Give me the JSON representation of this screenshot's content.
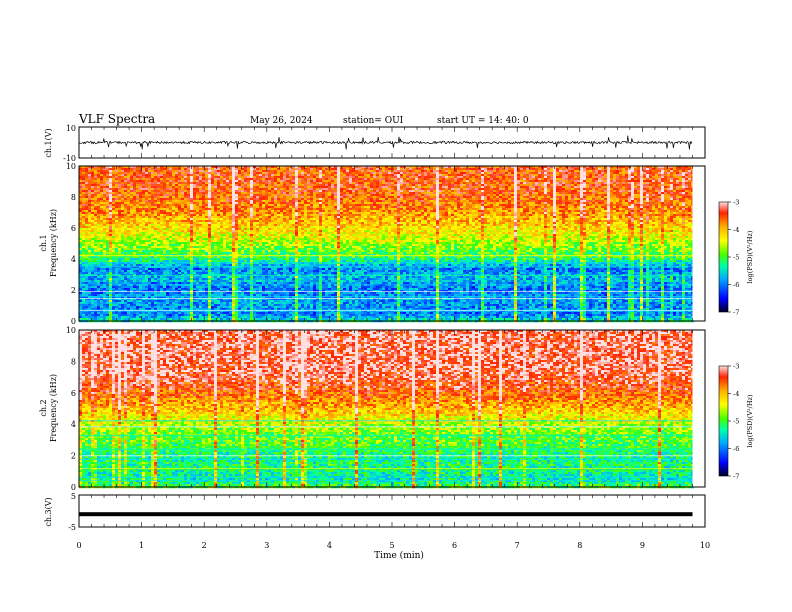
{
  "header": {
    "title": "VLF Spectra",
    "date": "May 26, 2024",
    "station": "station= OUI",
    "start": "start  UT =   14: 40: 0"
  },
  "panels": {
    "ch1_wave": {
      "ylabel": "ch.1(V)",
      "ymin_label": "-10",
      "ymax_label": "10"
    },
    "ch1_spec": {
      "ylabel1": "ch.1",
      "ylabel2": "Frequency (kHz)"
    },
    "ch2_spec": {
      "ylabel1": "ch.2",
      "ylabel2": "Frequency (kHz)"
    },
    "ch3_wave": {
      "ylabel": "ch.3(V)",
      "ymin_label": "-5",
      "ymax_label": "5"
    }
  },
  "colorbar": {
    "label": "log(PSD)(V²/Hz)",
    "ticks": [
      "-3",
      "-4",
      "-5",
      "-6",
      "-7"
    ]
  },
  "xaxis": {
    "label": "Time (min)"
  },
  "colors": {
    "scale": [
      "#00002a",
      "#0000ff",
      "#00aaff",
      "#00ffaa",
      "#44ff00",
      "#ffff00",
      "#ffaa00",
      "#ff2200",
      "#ffe0e0"
    ]
  },
  "chart_data": [
    {
      "type": "line",
      "name": "ch1-waveform",
      "ylabel": "ch.1(V)",
      "xlim": [
        0,
        10
      ],
      "ylim": [
        -10,
        10
      ],
      "x_data_end": 9.8,
      "baseline": 0,
      "description_values": {
        "typical_amplitude": 1.5,
        "spike_range": [
          -3,
          3
        ]
      }
    },
    {
      "type": "heatmap",
      "name": "ch1-spectrogram",
      "xlabel": "Time (min)",
      "ylabel": "Frequency (kHz)",
      "xlim": [
        0,
        10
      ],
      "x_data_end": 9.8,
      "ylim": [
        0,
        10
      ],
      "yticks": [
        0,
        2,
        4,
        6,
        8,
        10
      ],
      "zlim": [
        -7,
        -3
      ],
      "zlabel": "log(PSD)(V²/Hz)",
      "profile_freq_khz": [
        0,
        0.5,
        1,
        1.5,
        2,
        2.5,
        3,
        3.5,
        4,
        4.5,
        5,
        5.5,
        6,
        6.5,
        7,
        7.5,
        8,
        8.5,
        9,
        9.5,
        10
      ],
      "profile_logpsd": [
        -5.4,
        -6.1,
        -6.0,
        -5.9,
        -6.1,
        -6.0,
        -5.8,
        -6.1,
        -5.3,
        -5.0,
        -4.8,
        -4.5,
        -4.3,
        -4.1,
        -3.9,
        -3.8,
        -3.7,
        -3.6,
        -3.6,
        -3.6,
        -3.6
      ]
    },
    {
      "type": "heatmap",
      "name": "ch2-spectrogram",
      "xlabel": "Time (min)",
      "ylabel": "Frequency (kHz)",
      "xlim": [
        0,
        10
      ],
      "x_data_end": 9.8,
      "ylim": [
        0,
        10
      ],
      "yticks": [
        0,
        2,
        4,
        6,
        8,
        10
      ],
      "zlim": [
        -7,
        -3
      ],
      "zlabel": "log(PSD)(V²/Hz)",
      "profile_freq_khz": [
        0,
        0.5,
        1,
        1.5,
        2,
        2.5,
        3,
        3.5,
        4,
        4.5,
        5,
        5.5,
        6,
        6.5,
        7,
        7.5,
        8,
        8.5,
        9,
        9.5,
        10
      ],
      "profile_logpsd": [
        -5.0,
        -5.5,
        -5.4,
        -5.3,
        -5.4,
        -5.2,
        -5.0,
        -4.9,
        -4.7,
        -4.4,
        -4.1,
        -3.9,
        -3.7,
        -3.5,
        -3.4,
        -3.3,
        -3.3,
        -3.3,
        -3.3,
        -3.3,
        -3.3
      ]
    },
    {
      "type": "line",
      "name": "ch3-waveform",
      "ylabel": "ch.3(V)",
      "xlim": [
        0,
        10
      ],
      "ylim": [
        -5,
        5
      ],
      "x_data_end": 9.8,
      "baseline": -1
    },
    {
      "type": "axis",
      "name": "time-axis",
      "xlabel": "Time (min)",
      "xlim": [
        0,
        10
      ],
      "xticks": [
        "0",
        "1",
        "2",
        "3",
        "4",
        "5",
        "6",
        "7",
        "8",
        "9",
        "10"
      ]
    }
  ]
}
